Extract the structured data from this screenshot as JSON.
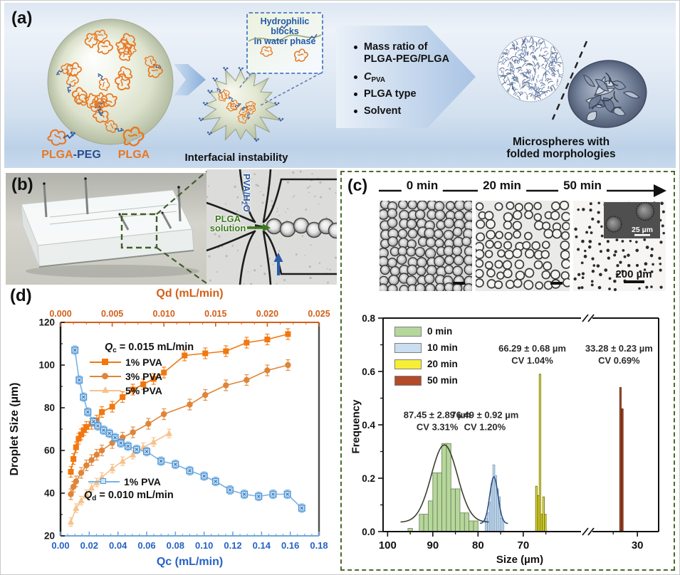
{
  "panel_a": {
    "label": "(a)",
    "plga_peg_orange": "PLGA",
    "plga_peg_blue": "-PEG",
    "plga": "PLGA",
    "interfacial_label": "Interfacial instability",
    "callout": {
      "line1": "Hydrophilic blocks",
      "line2": "in water phase"
    },
    "bullets": {
      "b0_line1": "Mass ratio of",
      "b0_line2": "PLGA-PEG/PLGA",
      "b1_pre": "C",
      "b1_sub": "PVA",
      "b2": "PLGA type",
      "b3": "Solvent"
    },
    "caption_line1": "Microspheres with",
    "caption_line2": "folded morphologies"
  },
  "panel_b": {
    "label": "(b)",
    "aqueous_phase": {
      "pre": "PVA/H",
      "sub": "2",
      "post": "O"
    },
    "oil_phase_line1": "PLGA",
    "oil_phase_line2": "solution"
  },
  "panel_c": {
    "label": "(c)",
    "timeline": [
      "0 min",
      "20 min",
      "50 min"
    ],
    "inset_scale_label": "25 µm",
    "main_scale_label": "200 µm"
  },
  "panel_d": {
    "label": "(d)",
    "legend_top": {
      "q_italic": "Q",
      "q_sub": "c",
      "q_rest": " = 0.015 mL/min"
    },
    "legend_bottom": {
      "q_italic": "Q",
      "q_sub": "d",
      "q_rest": " = 0.010 mL/min"
    }
  },
  "chart_data": [
    {
      "type": "scatter",
      "title": "",
      "ylabel": "Droplet Size (µm)",
      "ylim": [
        20,
        120
      ],
      "y_ticks": [
        "20",
        "40",
        "60",
        "80",
        "100",
        "120"
      ],
      "x_bottom": {
        "label": "Qc (mL/min)",
        "range": [
          0,
          0.18
        ],
        "ticks": [
          "0.00",
          "0.02",
          "0.04",
          "0.06",
          "0.08",
          "0.10",
          "0.12",
          "0.14",
          "0.16",
          "0.18"
        ],
        "color": "#2563c4",
        "line_color": "#6fa8dc"
      },
      "x_top": {
        "label": "Qd (mL/min)",
        "range": [
          0,
          0.025
        ],
        "ticks": [
          "0.000",
          "0.005",
          "0.010",
          "0.015",
          "0.020",
          "0.025"
        ],
        "color": "#d2601a"
      },
      "series": [
        {
          "name": "5% PVA",
          "x_axis": "top",
          "marker": "triangle",
          "color": "#f6c28b",
          "fill": "#f6c28b",
          "err": 2,
          "points": [
            [
              0.001,
              26.5
            ],
            [
              0.0015,
              33
            ],
            [
              0.002,
              36.5
            ],
            [
              0.0025,
              39.5
            ],
            [
              0.003,
              42.5
            ],
            [
              0.0035,
              45
            ],
            [
              0.004,
              47.5
            ],
            [
              0.005,
              51.5
            ],
            [
              0.006,
              55
            ],
            [
              0.007,
              58
            ],
            [
              0.008,
              61.5
            ],
            [
              0.009,
              64
            ],
            [
              0.0105,
              68
            ]
          ]
        },
        {
          "name": "3% PVA",
          "x_axis": "top",
          "marker": "circle",
          "color": "#e08538",
          "fill": "#e08538",
          "err": 2.5,
          "points": [
            [
              0.001,
              39.5
            ],
            [
              0.00125,
              43
            ],
            [
              0.0015,
              45.5
            ],
            [
              0.002,
              49.5
            ],
            [
              0.0025,
              53
            ],
            [
              0.003,
              55.5
            ],
            [
              0.0035,
              58
            ],
            [
              0.004,
              60
            ],
            [
              0.005,
              63.5
            ],
            [
              0.006,
              66
            ],
            [
              0.007,
              68.5
            ],
            [
              0.0085,
              72.5
            ],
            [
              0.01,
              77
            ],
            [
              0.0125,
              81.5
            ],
            [
              0.014,
              86
            ],
            [
              0.016,
              90.5
            ],
            [
              0.018,
              93
            ],
            [
              0.02,
              97.5
            ],
            [
              0.022,
              100
            ]
          ]
        },
        {
          "name": "1% PVA",
          "x_axis": "top",
          "marker": "square",
          "color": "#f2770e",
          "fill": "#f2770e",
          "err": 2.5,
          "points": [
            [
              0.001,
              50
            ],
            [
              0.00125,
              56
            ],
            [
              0.0015,
              61.5
            ],
            [
              0.00175,
              65.5
            ],
            [
              0.002,
              67.5
            ],
            [
              0.00225,
              69.5
            ],
            [
              0.0025,
              71
            ],
            [
              0.003,
              72.5
            ],
            [
              0.0035,
              74
            ],
            [
              0.004,
              78
            ],
            [
              0.005,
              80.5
            ],
            [
              0.006,
              85
            ],
            [
              0.007,
              88.5
            ],
            [
              0.008,
              91
            ],
            [
              0.009,
              93.5
            ],
            [
              0.01,
              96.5
            ],
            [
              0.012,
              104.5
            ],
            [
              0.014,
              105.5
            ],
            [
              0.016,
              106.5
            ],
            [
              0.018,
              110.5
            ],
            [
              0.02,
              112
            ],
            [
              0.022,
              114.5
            ]
          ]
        },
        {
          "name": "1% PVA",
          "x_axis": "bottom",
          "marker": "square-open",
          "color": "#7ab2e2",
          "fill": "#cfe4f6",
          "edge": "#4f97d9",
          "err": 2,
          "points": [
            [
              0.01,
              107
            ],
            [
              0.013,
              93
            ],
            [
              0.016,
              85
            ],
            [
              0.019,
              78
            ],
            [
              0.023,
              73.5
            ],
            [
              0.026,
              71.5
            ],
            [
              0.03,
              69.5
            ],
            [
              0.034,
              68
            ],
            [
              0.038,
              66
            ],
            [
              0.042,
              63.5
            ],
            [
              0.047,
              62
            ],
            [
              0.053,
              60.5
            ],
            [
              0.06,
              59.5
            ],
            [
              0.07,
              55
            ],
            [
              0.08,
              53.5
            ],
            [
              0.09,
              50.5
            ],
            [
              0.1,
              48
            ],
            [
              0.108,
              45.5
            ],
            [
              0.118,
              41.5
            ],
            [
              0.128,
              39.5
            ],
            [
              0.138,
              38.5
            ],
            [
              0.148,
              39.5
            ],
            [
              0.158,
              39.5
            ],
            [
              0.168,
              33
            ]
          ]
        }
      ]
    },
    {
      "type": "histogram",
      "title": "",
      "xlabel": "Size (µm)",
      "ylabel": "Frequency",
      "x_reversed": true,
      "x_break_between": [
        57,
        39
      ],
      "x_ticks": [
        "100",
        "90",
        "80",
        "70",
        "30"
      ],
      "ylim": [
        0,
        0.8
      ],
      "y_ticks": [
        "0.0",
        "0.2",
        "0.4",
        "0.6",
        "0.8"
      ],
      "legend": [
        {
          "label": "0 min",
          "color": "#b5d79b"
        },
        {
          "label": "10 min",
          "color": "#c9def0"
        },
        {
          "label": "20 min",
          "color": "#f6ef35"
        },
        {
          "label": "50 min",
          "color": "#b34a28"
        }
      ],
      "series": [
        {
          "name": "0 min",
          "fill": "#b5d79b",
          "edge": "#75855f",
          "bar_width": 1.0,
          "bars": [
            [
              95,
              0.012
            ],
            [
              92.5,
              0.065
            ],
            [
              91.5,
              0.065
            ],
            [
              90.5,
              0.115
            ],
            [
              89.5,
              0.22
            ],
            [
              88.5,
              0.22
            ],
            [
              87.5,
              0.33
            ],
            [
              86.5,
              0.33
            ],
            [
              85.5,
              0.16
            ],
            [
              84.5,
              0.16
            ],
            [
              83.5,
              0.07
            ],
            [
              82.5,
              0.07
            ],
            [
              81.5,
              0.04
            ],
            [
              80.5,
              0.04
            ]
          ],
          "fit": {
            "mean": 87.45,
            "sd": 2.89,
            "amp": 0.29,
            "base": 0.035,
            "color": "#3b4030"
          }
        },
        {
          "name": "10 min",
          "fill": "#c9def0",
          "edge": "#7d9cbb",
          "bar_width": 0.42,
          "bars": [
            [
              78.2,
              0.05
            ],
            [
              77.7,
              0.07
            ],
            [
              77.3,
              0.11
            ],
            [
              76.9,
              0.18
            ],
            [
              76.5,
              0.25
            ],
            [
              76.1,
              0.21
            ],
            [
              75.7,
              0.16
            ],
            [
              75.3,
              0.13
            ],
            [
              74.9,
              0.05
            ],
            [
              74.5,
              0.04
            ]
          ],
          "fit": {
            "mean": 76.49,
            "sd": 0.92,
            "amp": 0.175,
            "base": 0.03,
            "color": "#2d4f86"
          }
        },
        {
          "name": "20 min",
          "fill": "#f6ef35",
          "edge": "#6f6f14",
          "bar_width": 0.34,
          "bars": [
            [
              67.1,
              0.17
            ],
            [
              66.7,
              0.135
            ],
            [
              66.3,
              0.59
            ],
            [
              65.9,
              0.065
            ],
            [
              65.5,
              0.13
            ],
            [
              65.1,
              0.065
            ]
          ]
        },
        {
          "name": "50 min",
          "fill": "#b34a28",
          "edge": "#5f2511",
          "bar_width": 0.3,
          "bars": [
            [
              33.5,
              0.54
            ],
            [
              33.1,
              0.46
            ]
          ]
        }
      ],
      "annotations": [
        {
          "line1": "87.45 ± 2.89 µm",
          "line2": "CV 3.31%",
          "x": 89,
          "y": 0.425
        },
        {
          "line1": "76.49 ± 0.92 µm",
          "line2": "CV 1.20%",
          "x": 78.5,
          "y": 0.425
        },
        {
          "line1": "66.29 ± 0.68 µm",
          "line2": "CV 1.04%",
          "x": 68,
          "y": 0.675
        },
        {
          "line1": "33.28 ± 0.23 µm",
          "line2": "CV 0.69%",
          "x": 33.8,
          "y": 0.675
        }
      ]
    }
  ]
}
